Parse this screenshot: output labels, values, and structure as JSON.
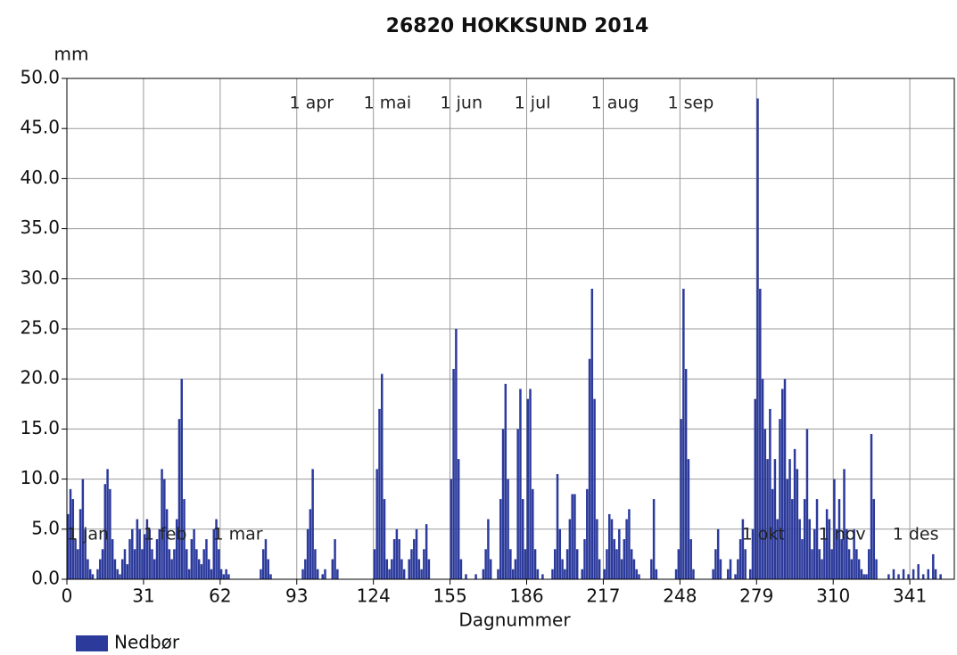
{
  "chart_data": {
    "type": "bar",
    "title": "26820 HOKKSUND 2014",
    "y_unit": "mm",
    "x_label": "Dagnummer",
    "series": [
      {
        "name": "Nedbør",
        "color": "#2b3a9b",
        "x": [
          0,
          1,
          2,
          3,
          4,
          5,
          6,
          7,
          8,
          9,
          10,
          12,
          13,
          14,
          15,
          16,
          17,
          18,
          19,
          20,
          21,
          22,
          23,
          24,
          25,
          26,
          27,
          28,
          29,
          30,
          31,
          32,
          33,
          34,
          35,
          36,
          37,
          38,
          39,
          40,
          41,
          42,
          43,
          44,
          45,
          46,
          47,
          48,
          49,
          50,
          51,
          52,
          53,
          54,
          55,
          56,
          57,
          58,
          59,
          60,
          61,
          62,
          63,
          64,
          65,
          78,
          79,
          80,
          81,
          82,
          95,
          96,
          97,
          98,
          99,
          100,
          101,
          103,
          104,
          107,
          108,
          109,
          124,
          125,
          126,
          127,
          128,
          129,
          130,
          131,
          132,
          133,
          134,
          135,
          136,
          138,
          139,
          140,
          141,
          142,
          143,
          144,
          145,
          146,
          155,
          156,
          157,
          158,
          159,
          161,
          165,
          168,
          169,
          170,
          171,
          174,
          175,
          176,
          177,
          178,
          179,
          180,
          181,
          182,
          183,
          184,
          185,
          186,
          187,
          188,
          189,
          190,
          192,
          196,
          197,
          198,
          199,
          200,
          201,
          202,
          203,
          204,
          205,
          206,
          208,
          209,
          210,
          211,
          212,
          213,
          214,
          215,
          217,
          218,
          219,
          220,
          221,
          222,
          223,
          224,
          225,
          226,
          227,
          228,
          229,
          230,
          231,
          236,
          237,
          238,
          246,
          247,
          248,
          249,
          250,
          251,
          252,
          253,
          261,
          262,
          263,
          264,
          267,
          268,
          270,
          271,
          272,
          273,
          274,
          276,
          277,
          278,
          279,
          280,
          281,
          282,
          283,
          284,
          285,
          286,
          287,
          288,
          289,
          290,
          291,
          292,
          293,
          294,
          295,
          296,
          297,
          298,
          299,
          300,
          301,
          302,
          303,
          304,
          305,
          306,
          307,
          308,
          309,
          310,
          311,
          312,
          313,
          314,
          315,
          316,
          317,
          318,
          319,
          320,
          321,
          322,
          323,
          324,
          325,
          326,
          327,
          332,
          334,
          336,
          338,
          340,
          342,
          344,
          346,
          348,
          350,
          351,
          353
        ],
        "values": [
          6.5,
          9,
          8,
          4,
          3,
          7,
          10,
          5,
          2,
          1,
          0.5,
          1,
          2,
          3,
          9.5,
          11,
          9,
          4,
          2,
          1,
          0.5,
          2,
          3,
          1.5,
          4,
          5,
          3,
          6,
          5,
          3,
          4.5,
          6,
          5,
          3,
          2,
          4,
          5,
          11,
          10,
          7,
          3,
          2,
          3,
          6,
          16,
          20,
          8,
          3,
          1,
          4,
          5,
          3,
          2,
          1.5,
          3,
          4,
          2,
          1,
          5,
          6,
          3,
          1,
          0.5,
          1,
          0.5,
          1,
          3,
          4,
          2,
          0.5,
          1,
          2,
          5,
          7,
          11,
          3,
          1,
          0.5,
          1,
          2,
          4,
          1,
          3,
          11,
          17,
          20.5,
          8,
          2,
          1,
          2,
          4,
          5,
          4,
          2,
          1,
          2,
          3,
          4,
          5,
          2,
          1,
          3,
          5.5,
          2,
          10,
          21,
          25,
          12,
          2,
          0.5,
          0.5,
          1,
          3,
          6,
          2,
          1,
          8,
          15,
          19.5,
          10,
          3,
          1,
          2,
          15,
          19,
          8,
          3,
          18,
          19,
          9,
          3,
          1,
          0.5,
          1,
          3,
          10.5,
          5,
          2,
          1,
          3,
          6,
          8.5,
          8.5,
          3,
          1,
          4,
          9,
          22,
          29,
          18,
          6,
          2,
          1,
          3,
          6.5,
          6,
          4,
          3,
          5,
          2,
          4,
          6,
          7,
          3,
          2,
          1,
          0.5,
          2,
          8,
          1,
          1,
          3,
          16,
          29,
          21,
          12,
          4,
          1,
          1,
          3,
          5,
          2,
          1,
          2,
          0.5,
          2,
          4,
          6,
          3,
          1,
          5,
          18,
          48,
          29,
          20,
          15,
          12,
          17,
          9,
          12,
          6,
          16,
          19,
          20,
          10,
          12,
          8,
          13,
          11,
          6,
          4,
          8,
          15,
          6,
          3,
          5,
          8,
          3,
          2,
          4,
          7,
          6,
          3,
          10,
          5,
          8,
          4,
          11,
          5,
          3,
          2,
          5,
          3,
          2,
          1,
          0.5,
          0.5,
          3,
          14.5,
          8,
          2,
          0.5,
          1,
          0.5,
          1,
          0.5,
          1,
          1.5,
          0.5,
          1,
          2.5,
          1,
          0.5
        ]
      }
    ],
    "xlim": [
      0,
      359
    ],
    "xticks": [
      0,
      31,
      62,
      93,
      124,
      155,
      186,
      217,
      248,
      279,
      310,
      341
    ],
    "ylim": [
      0,
      50
    ],
    "yticks": [
      {
        "value": 0,
        "label": "0.0"
      },
      {
        "value": 5,
        "label": "5.0"
      },
      {
        "value": 10,
        "label": "10.0"
      },
      {
        "value": 15,
        "label": "15.0"
      },
      {
        "value": 20,
        "label": "20.0"
      },
      {
        "value": 25,
        "label": "25.0"
      },
      {
        "value": 30,
        "label": "30.0"
      },
      {
        "value": 35,
        "label": "35.0"
      },
      {
        "value": 40,
        "label": "40.0"
      },
      {
        "value": 45,
        "label": "45.0"
      },
      {
        "value": 50,
        "label": "50.0"
      }
    ],
    "grid": true,
    "legend": "bottom-left",
    "month_markers_top": [
      {
        "label": "1 apr",
        "day": 90
      },
      {
        "label": "1 mai",
        "day": 120
      },
      {
        "label": "1 jun",
        "day": 151
      },
      {
        "label": "1 jul",
        "day": 181
      },
      {
        "label": "1 aug",
        "day": 212
      },
      {
        "label": "1 sep",
        "day": 243
      }
    ],
    "month_markers_bottom": [
      {
        "label": "1 jan",
        "day": 0
      },
      {
        "label": "1 feb",
        "day": 31
      },
      {
        "label": "1 mar",
        "day": 59
      },
      {
        "label": "1 okt",
        "day": 273
      },
      {
        "label": "1 nov",
        "day": 304
      },
      {
        "label": "1 des",
        "day": 334
      }
    ]
  }
}
